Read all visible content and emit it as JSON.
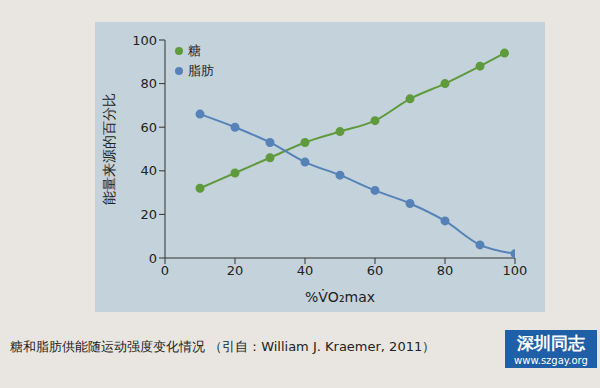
{
  "chart_data": {
    "type": "line",
    "caption": "糖和脂肪供能随运动强度变化情况 （引自：William J. Kraemer, 2011）",
    "watermark": [
      "深圳同志",
      "www.szgay.org"
    ],
    "x_label": "%V̇O₂max",
    "y_label": "能量来源的百分比",
    "xlim": [
      0,
      100
    ],
    "xticks": [
      0,
      20,
      40,
      60,
      80,
      100
    ],
    "ylim": [
      0,
      100
    ],
    "yticks": [
      0,
      20,
      40,
      60,
      80,
      100
    ],
    "grid": false,
    "legend": "upper left",
    "marker": "circle",
    "series": [
      {
        "name": "糖",
        "color": "#5f9a3c",
        "x": [
          10,
          20,
          30,
          40,
          50,
          60,
          70,
          80,
          90,
          97
        ],
        "values": [
          32,
          39,
          46,
          53,
          58,
          63,
          73,
          80,
          88,
          94
        ]
      },
      {
        "name": "脂肪",
        "color": "#5682b8",
        "x": [
          10,
          20,
          30,
          40,
          50,
          60,
          70,
          80,
          90,
          100
        ],
        "values": [
          66,
          60,
          53,
          44,
          38,
          31,
          25,
          17,
          6,
          2
        ]
      }
    ]
  }
}
